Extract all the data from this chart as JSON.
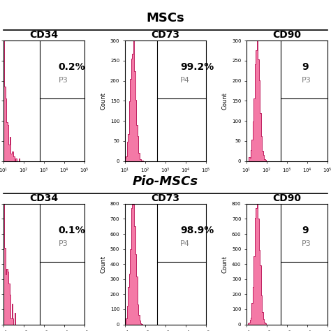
{
  "title_top": "MSCs",
  "title_bottom": "Pio-MSCs",
  "row1_labels": [
    "CD34",
    "CD73",
    "CD90"
  ],
  "row2_labels": [
    "CD34",
    "CD73",
    "CD90"
  ],
  "row1_percentages": [
    "0.2%",
    "99.2%",
    "9"
  ],
  "row2_percentages": [
    "0.1%",
    "98.9%",
    "9"
  ],
  "row1_gate_labels": [
    "P3",
    "P4",
    "P3"
  ],
  "row2_gate_labels": [
    "P3",
    "P4",
    "P3"
  ],
  "hist_color": "#F04080",
  "hist_edge_color": "#C02060",
  "hist_fill_alpha": 0.7,
  "background_color": "#ffffff",
  "line_color": "#222222",
  "ylabel": "Count",
  "title_fontsize": 13,
  "label_fontsize": 10,
  "pct_fontsize": 10,
  "gate_fontsize": 8
}
